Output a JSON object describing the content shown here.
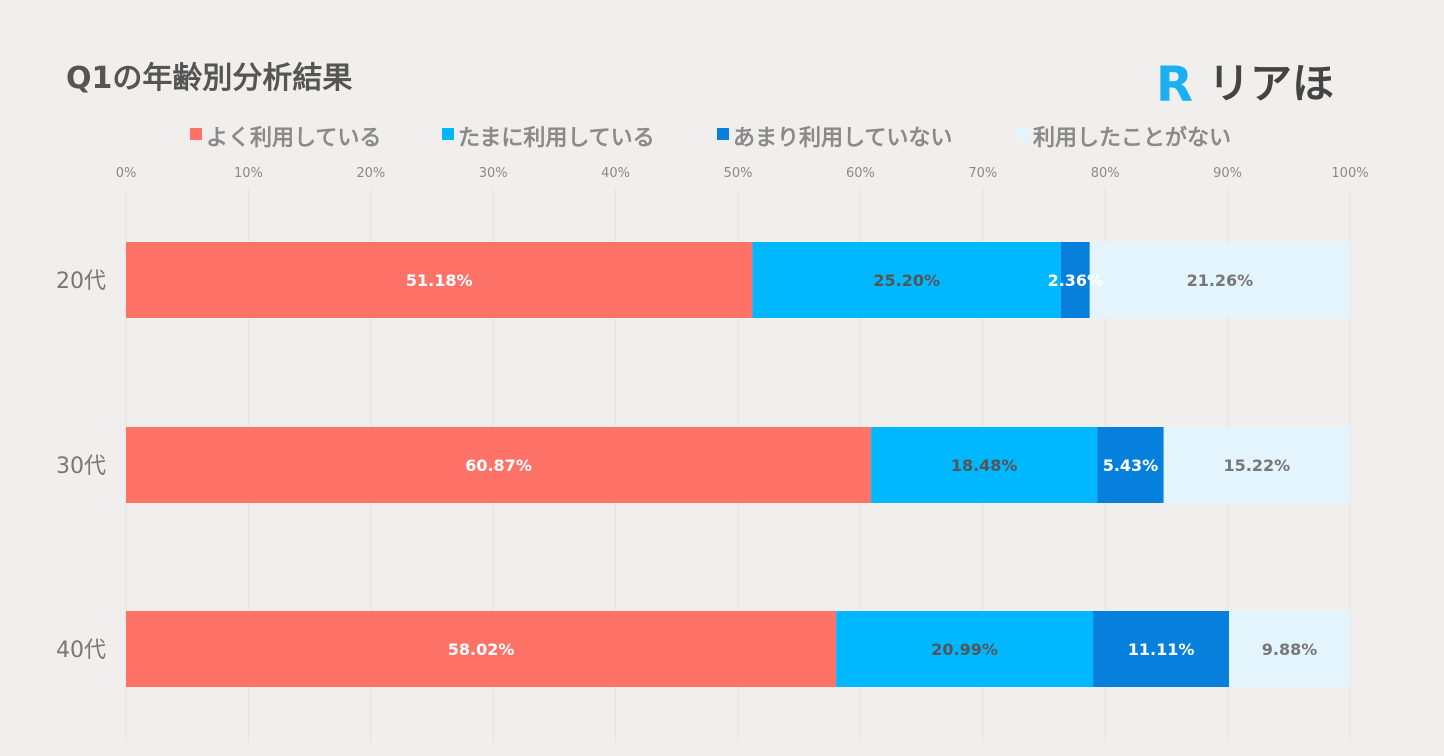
{
  "chart_data": {
    "type": "bar",
    "orientation": "horizontal",
    "stacked": true,
    "title": "Q1の年齢別分析結果",
    "categories": [
      "20代",
      "30代",
      "40代"
    ],
    "series": [
      {
        "name": "よく利用している",
        "color": "#ff7268",
        "label_color": "#ffffff",
        "values": [
          51.18,
          60.87,
          58.02
        ],
        "labels": [
          "51.18%",
          "60.87%",
          "58.02%"
        ]
      },
      {
        "name": "たまに利用している",
        "color": "#00b8ff",
        "label_color": "#555555",
        "values": [
          25.2,
          18.48,
          20.99
        ],
        "labels": [
          "25.20%",
          "18.48%",
          "20.99%"
        ]
      },
      {
        "name": "あまり利用していない",
        "color": "#0680dc",
        "label_color": "#ffffff",
        "values": [
          2.36,
          5.43,
          11.11
        ],
        "labels": [
          "2.36%",
          "5.43%",
          "11.11%"
        ]
      },
      {
        "name": "利用したことがない",
        "color": "#e3f4fc",
        "label_color": "#777777",
        "values": [
          21.26,
          15.22,
          9.88
        ],
        "labels": [
          "21.26%",
          "15.22%",
          "9.88%"
        ]
      }
    ],
    "xlim": [
      0,
      100
    ],
    "xticks": [
      "0%",
      "10%",
      "20%",
      "30%",
      "40%",
      "50%",
      "60%",
      "70%",
      "80%",
      "90%",
      "100%"
    ],
    "legend_position": "top",
    "grid": true
  },
  "logo": {
    "mark": "R",
    "text": "リアほ",
    "mark_color": "#1ab0f0"
  }
}
